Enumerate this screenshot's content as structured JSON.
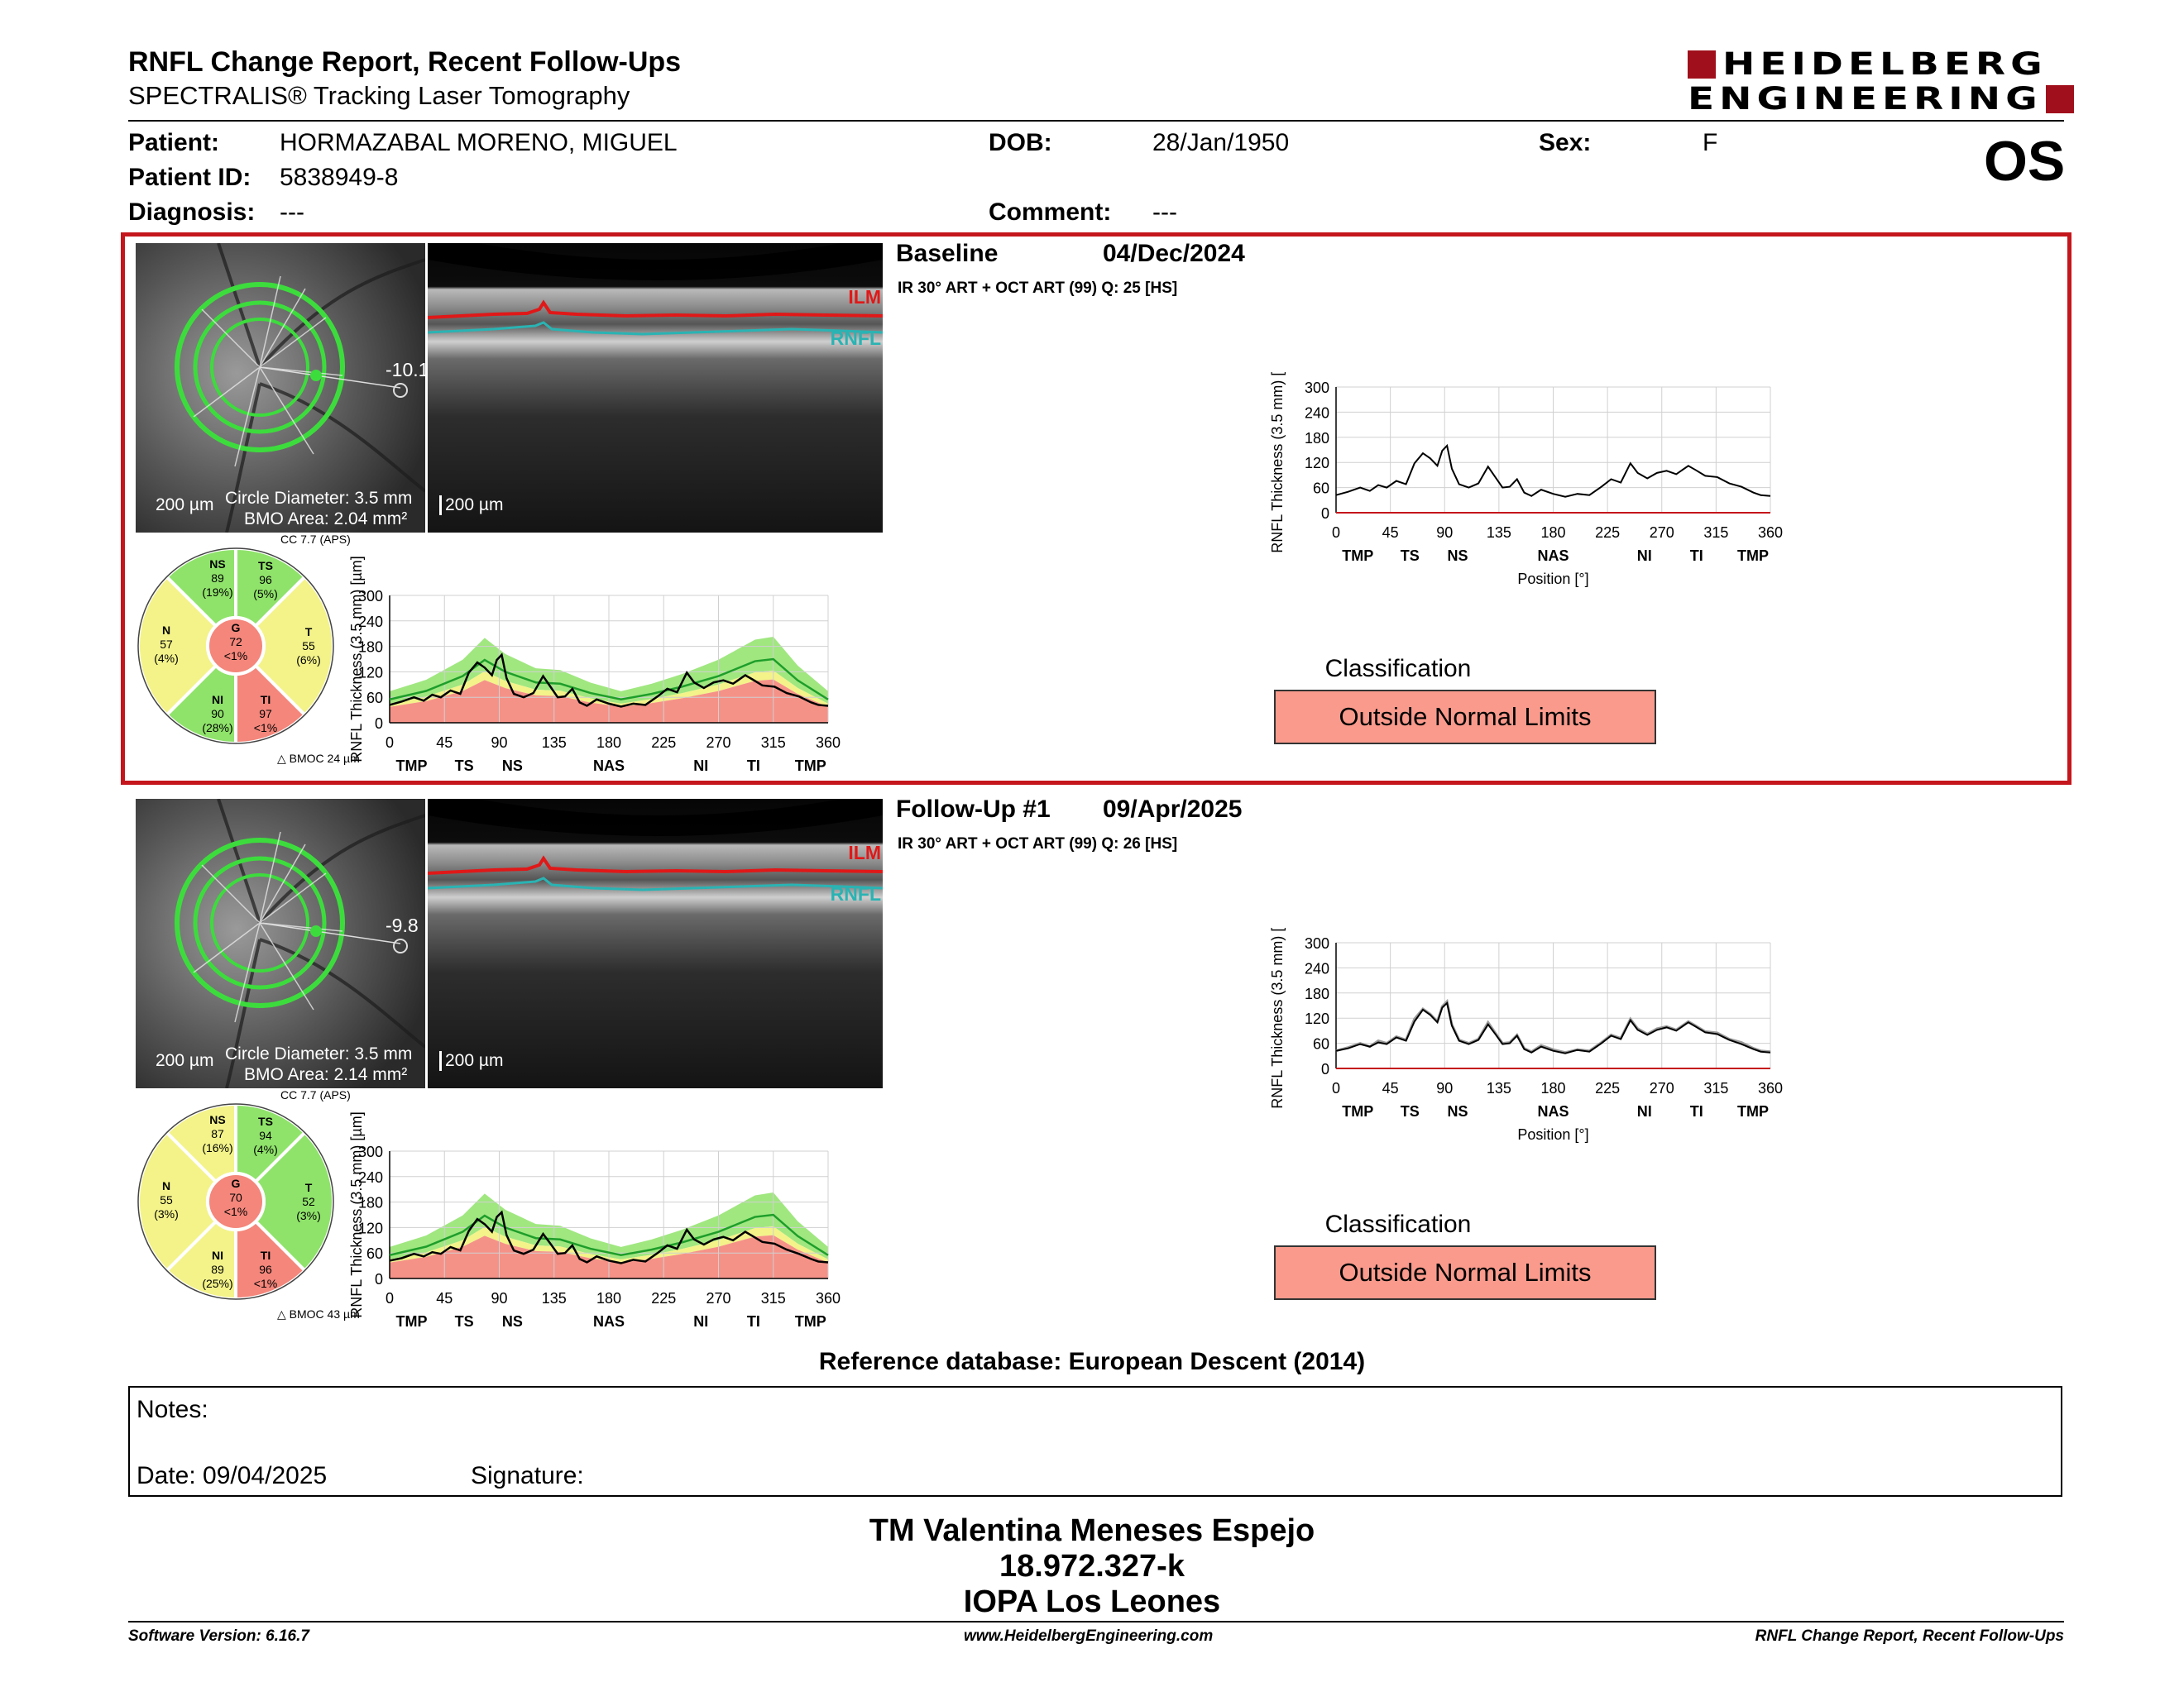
{
  "report": {
    "title": "RNFL Change Report, Recent Follow-Ups",
    "subtitle": "SPECTRALIS® Tracking Laser Tomography",
    "brand_line1": "HEIDELBERG",
    "brand_line2": "ENGINEERING",
    "eye": "OS"
  },
  "patient": {
    "patient_label": "Patient:",
    "patient_value": "HORMAZABAL MORENO, MIGUEL",
    "id_label": "Patient ID:",
    "id_value": "5838949-8",
    "diagnosis_label": "Diagnosis:",
    "diagnosis_value": "---",
    "dob_label": "DOB:",
    "dob_value": "28/Jan/1950",
    "comment_label": "Comment:",
    "comment_value": "---",
    "sex_label": "Sex:",
    "sex_value": "F"
  },
  "exams": [
    {
      "label": "Baseline",
      "date": "04/Dec/2024",
      "protocol": "IR 30° ART + OCT ART (99) Q: 25 [HS]",
      "fovea_angle": "-10.1",
      "scale_fundus": "200 µm",
      "circle_diameter": "Circle Diameter: 3.5 mm",
      "bmo_area": "BMO Area: 2.04 mm²",
      "scale_bscan": "200 µm",
      "ilm": "ILM",
      "rnfl": "RNFL",
      "cc": "CC 7.7 (APS)",
      "bmoc": "BMOC 24 µm",
      "sectors": {
        "NS": {
          "name": "NS",
          "value": "89",
          "pct": "(19%)"
        },
        "TS": {
          "name": "TS",
          "value": "96",
          "pct": "(5%)"
        },
        "N": {
          "name": "N",
          "value": "57",
          "pct": "(4%)"
        },
        "G": {
          "name": "G",
          "value": "72",
          "pct": "<1%"
        },
        "T": {
          "name": "T",
          "value": "55",
          "pct": "(6%)"
        },
        "NI": {
          "name": "NI",
          "value": "90",
          "pct": "(28%)"
        },
        "TI": {
          "name": "TI",
          "value": "97",
          "pct": "<1%"
        }
      },
      "classification_title": "Classification",
      "classification": "Outside Normal Limits"
    },
    {
      "label": "Follow-Up #1",
      "date": "09/Apr/2025",
      "protocol": "IR 30° ART + OCT ART (99) Q: 26 [HS]",
      "fovea_angle": "-9.8",
      "scale_fundus": "200 µm",
      "circle_diameter": "Circle Diameter: 3.5 mm",
      "bmo_area": "BMO Area: 2.14 mm²",
      "scale_bscan": "200 µm",
      "ilm": "ILM",
      "rnfl": "RNFL",
      "cc": "CC 7.7 (APS)",
      "bmoc": "BMOC 43 µm",
      "sectors": {
        "NS": {
          "name": "NS",
          "value": "87",
          "pct": "(16%)"
        },
        "TS": {
          "name": "TS",
          "value": "94",
          "pct": "(4%)"
        },
        "N": {
          "name": "N",
          "value": "55",
          "pct": "(3%)"
        },
        "G": {
          "name": "G",
          "value": "70",
          "pct": "<1%"
        },
        "T": {
          "name": "T",
          "value": "52",
          "pct": "(3%)"
        },
        "NI": {
          "name": "NI",
          "value": "89",
          "pct": "(25%)"
        },
        "TI": {
          "name": "TI",
          "value": "96",
          "pct": "<1%"
        }
      },
      "classification_title": "Classification",
      "classification": "Outside Normal Limits"
    }
  ],
  "colors": {
    "frame": "#c4161c",
    "within_normal": "#8fe36a",
    "borderline": "#f3f38a",
    "outside_normal": "#f4867b",
    "classification_fill": "#f99a8c",
    "mean_curve": "#1e9e2a"
  },
  "chart_data": [
    {
      "type": "line",
      "ylabel": "RNFL Thickness (3.5 mm) [µm]",
      "xlabel": "Position [°]",
      "ylim": [
        0,
        300
      ],
      "xlim": [
        0,
        360
      ],
      "yticks": [
        "0",
        "60",
        "120",
        "180",
        "240",
        "300"
      ],
      "xticks": [
        "0",
        "45",
        "90",
        "135",
        "180",
        "225",
        "270",
        "315",
        "360"
      ],
      "sector_ticks": [
        "TMP",
        "TS",
        "NS",
        "NAS",
        "NI",
        "TI",
        "TMP"
      ],
      "grid": true,
      "normative_mean": [
        [
          0,
          55
        ],
        [
          30,
          75
        ],
        [
          60,
          110
        ],
        [
          78,
          148
        ],
        [
          95,
          120
        ],
        [
          120,
          95
        ],
        [
          140,
          92
        ],
        [
          165,
          70
        ],
        [
          190,
          55
        ],
        [
          215,
          68
        ],
        [
          240,
          85
        ],
        [
          270,
          110
        ],
        [
          300,
          145
        ],
        [
          315,
          150
        ],
        [
          335,
          100
        ],
        [
          360,
          55
        ]
      ],
      "series": [
        {
          "values": [
            [
              0,
              42
            ],
            [
              10,
              50
            ],
            [
              20,
              60
            ],
            [
              28,
              52
            ],
            [
              35,
              66
            ],
            [
              42,
              60
            ],
            [
              50,
              76
            ],
            [
              58,
              68
            ],
            [
              65,
              118
            ],
            [
              72,
              142
            ],
            [
              78,
              130
            ],
            [
              84,
              112
            ],
            [
              88,
              148
            ],
            [
              92,
              160
            ],
            [
              96,
              105
            ],
            [
              102,
              68
            ],
            [
              110,
              60
            ],
            [
              118,
              70
            ],
            [
              126,
              110
            ],
            [
              132,
              85
            ],
            [
              138,
              60
            ],
            [
              144,
              62
            ],
            [
              150,
              80
            ],
            [
              156,
              48
            ],
            [
              162,
              40
            ],
            [
              170,
              55
            ],
            [
              180,
              45
            ],
            [
              190,
              38
            ],
            [
              200,
              45
            ],
            [
              210,
              42
            ],
            [
              220,
              62
            ],
            [
              228,
              80
            ],
            [
              236,
              72
            ],
            [
              244,
              118
            ],
            [
              250,
              95
            ],
            [
              258,
              82
            ],
            [
              266,
              95
            ],
            [
              274,
              100
            ],
            [
              282,
              92
            ],
            [
              292,
              112
            ],
            [
              298,
              102
            ],
            [
              306,
              88
            ],
            [
              316,
              85
            ],
            [
              326,
              70
            ],
            [
              336,
              62
            ],
            [
              346,
              48
            ],
            [
              352,
              42
            ],
            [
              360,
              40
            ]
          ]
        }
      ]
    },
    {
      "type": "line",
      "ylabel": "RNFL Thickness (3.5 mm) [µm]",
      "xlabel": "Position [°]",
      "ylim": [
        0,
        300
      ],
      "xlim": [
        0,
        360
      ],
      "yticks": [
        "0",
        "60",
        "120",
        "180",
        "240",
        "300"
      ],
      "xticks": [
        "0",
        "45",
        "90",
        "135",
        "180",
        "225",
        "270",
        "315",
        "360"
      ],
      "sector_ticks": [
        "TMP",
        "TS",
        "NS",
        "NAS",
        "NI",
        "TI",
        "TMP"
      ],
      "grid": true,
      "normative_mean": [
        [
          0,
          55
        ],
        [
          30,
          75
        ],
        [
          60,
          110
        ],
        [
          78,
          148
        ],
        [
          95,
          120
        ],
        [
          120,
          95
        ],
        [
          140,
          92
        ],
        [
          165,
          70
        ],
        [
          190,
          55
        ],
        [
          215,
          68
        ],
        [
          240,
          85
        ],
        [
          270,
          110
        ],
        [
          300,
          145
        ],
        [
          315,
          150
        ],
        [
          335,
          100
        ],
        [
          360,
          55
        ]
      ],
      "series": [
        {
          "values": [
            [
              0,
              42
            ],
            [
              10,
              48
            ],
            [
              20,
              58
            ],
            [
              28,
              52
            ],
            [
              35,
              62
            ],
            [
              42,
              58
            ],
            [
              50,
              74
            ],
            [
              58,
              66
            ],
            [
              65,
              112
            ],
            [
              72,
              140
            ],
            [
              78,
              128
            ],
            [
              84,
              110
            ],
            [
              88,
              145
            ],
            [
              92,
              156
            ],
            [
              96,
              102
            ],
            [
              102,
              66
            ],
            [
              110,
              58
            ],
            [
              118,
              68
            ],
            [
              126,
              105
            ],
            [
              132,
              82
            ],
            [
              138,
              58
            ],
            [
              144,
              60
            ],
            [
              150,
              78
            ],
            [
              156,
              46
            ],
            [
              162,
              38
            ],
            [
              170,
              52
            ],
            [
              180,
              42
            ],
            [
              190,
              36
            ],
            [
              200,
              44
            ],
            [
              210,
              40
            ],
            [
              220,
              60
            ],
            [
              228,
              78
            ],
            [
              236,
              70
            ],
            [
              244,
              115
            ],
            [
              250,
              92
            ],
            [
              258,
              80
            ],
            [
              266,
              92
            ],
            [
              274,
              98
            ],
            [
              282,
              90
            ],
            [
              292,
              110
            ],
            [
              298,
              100
            ],
            [
              306,
              86
            ],
            [
              316,
              82
            ],
            [
              326,
              68
            ],
            [
              336,
              58
            ],
            [
              346,
              46
            ],
            [
              352,
              40
            ],
            [
              360,
              38
            ]
          ]
        }
      ]
    }
  ],
  "footer": {
    "reference_db": "Reference database: European Descent (2014)",
    "notes_label": "Notes:",
    "date_label": "Date: 09/04/2025",
    "signature_label": "Signature:",
    "operator_name": "TM Valentina Meneses Espejo",
    "operator_id": "18.972.327-k",
    "institution": "IOPA Los Leones",
    "software_version": "Software Version: 6.16.7",
    "website": "www.HeidelbergEngineering.com",
    "report_name": "RNFL Change Report, Recent Follow-Ups"
  }
}
